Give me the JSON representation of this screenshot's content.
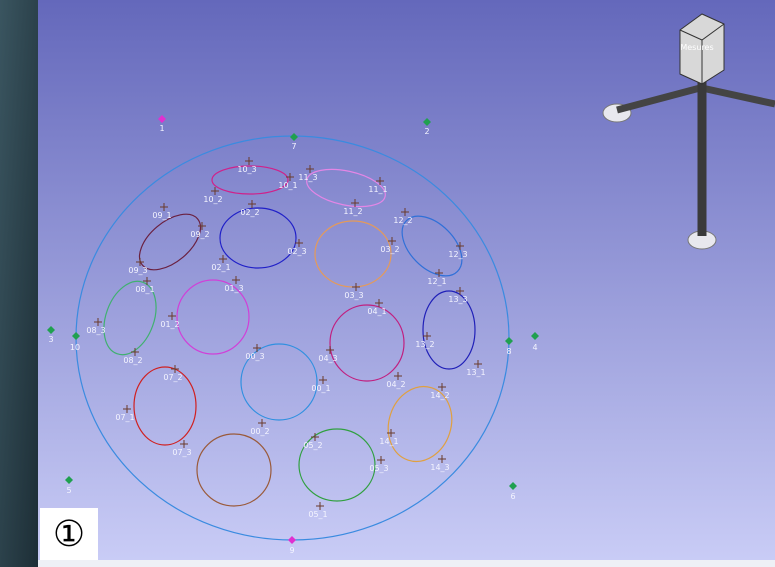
{
  "view_label": "Mesures",
  "badge": "①",
  "reference_points": [
    "1",
    "2",
    "7",
    "3",
    "10",
    "8",
    "4",
    "5",
    "6",
    "9"
  ],
  "targets": [
    [
      "10_3",
      "10_1",
      "10_2"
    ],
    [
      "11_3",
      "11_1",
      "11_2"
    ],
    [
      "09_1",
      "09_2",
      "09_3"
    ],
    [
      "02_2",
      "02_3",
      "02_1"
    ],
    [
      "03_2",
      "03_3"
    ],
    [
      "12_2",
      "12_3",
      "12_1"
    ],
    [
      "08_1",
      "08_3",
      "08_2"
    ],
    [
      "01_3",
      "01_2"
    ],
    [
      "04_1",
      "04_3",
      "04_2"
    ],
    [
      "13_3",
      "13_2",
      "13_1"
    ],
    [
      "00_3",
      "00_1",
      "00_2"
    ],
    [
      "07_2",
      "07_1",
      "07_3"
    ],
    [
      "14_2",
      "14_1",
      "14_3"
    ],
    [
      "05_2",
      "05_3",
      "05_1"
    ]
  ]
}
